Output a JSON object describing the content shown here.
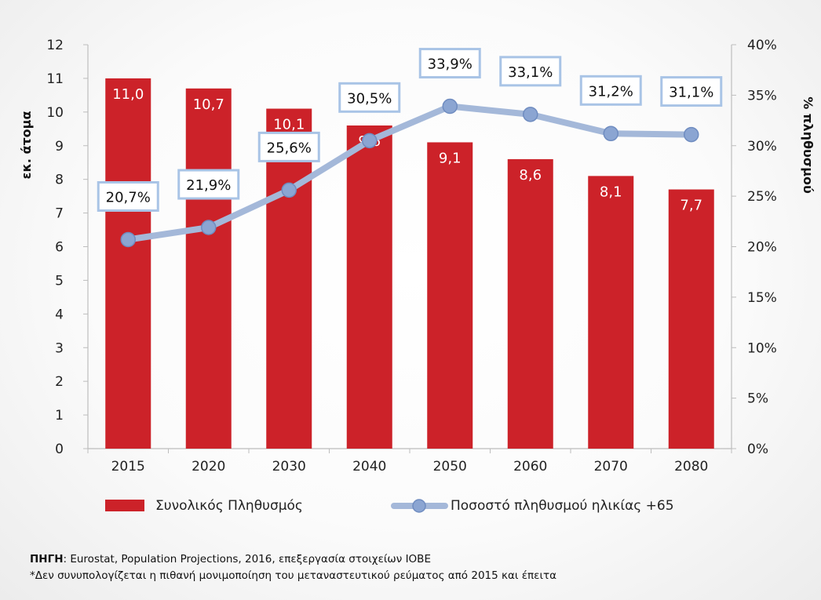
{
  "chart_data": {
    "type": "bar",
    "categories": [
      "2015",
      "2020",
      "2030",
      "2040",
      "2050",
      "2060",
      "2070",
      "2080"
    ],
    "series": [
      {
        "name": "Συνολικός Πληθυσμός",
        "type": "bar",
        "axis": "left",
        "color": "#cc2229",
        "values": [
          11.0,
          10.7,
          10.1,
          9.6,
          9.1,
          8.6,
          8.1,
          7.7
        ],
        "labels": [
          "11,0",
          "10,7",
          "10,1",
          "9,6",
          "9,1",
          "8,6",
          "8,1",
          "7,7"
        ]
      },
      {
        "name": "Ποσοστό πληθυσμού ηλικίας +65",
        "type": "line",
        "axis": "right",
        "color": "#a4b8d9",
        "values": [
          20.7,
          21.9,
          25.6,
          30.5,
          33.9,
          33.1,
          31.2,
          31.1
        ],
        "labels": [
          "20,7%",
          "21,9%",
          "25,6%",
          "30,5%",
          "33,9%",
          "33,1%",
          "31,2%",
          "31,1%"
        ]
      }
    ],
    "y_left": {
      "label": "εκ. άτομα",
      "range": [
        0,
        12
      ],
      "ticks": [
        "0",
        "1",
        "2",
        "3",
        "4",
        "5",
        "6",
        "7",
        "8",
        "9",
        "10",
        "11",
        "12"
      ]
    },
    "y_right": {
      "label": "% πληθυσμού",
      "range": [
        0,
        40
      ],
      "ticks": [
        "0%",
        "5%",
        "10%",
        "15%",
        "20%",
        "25%",
        "30%",
        "35%",
        "40%"
      ]
    },
    "grid": false,
    "legend": "bottom"
  },
  "source": {
    "label": "ΠΗΓΗ",
    "text": ": Eurostat, Population Projections, 2016, επεξεργασία στοιχείων ΙΟΒΕ",
    "note": "*Δεν συνυπολογίζεται η πιθανή μονιμοποίηση του μεταναστευτικού ρεύματος από 2015 και έπειτα"
  }
}
